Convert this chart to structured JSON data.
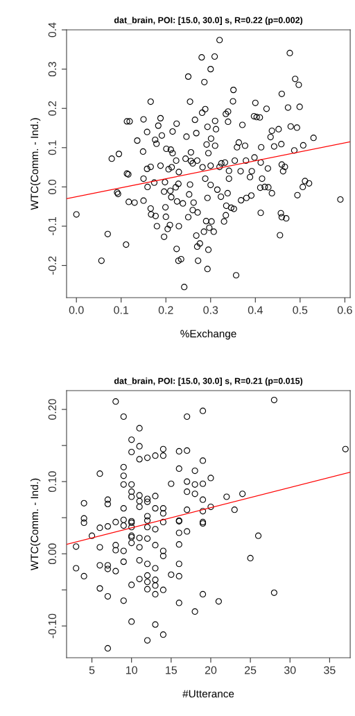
{
  "chart_data": [
    {
      "type": "scatter",
      "title": "dat_brain, POI: [15.0, 30.0] s, R=0.22 (p=0.002)",
      "xlabel": "%Exchange",
      "ylabel": "WTC(Comm. - Ind.)",
      "xlim": [
        -0.022,
        0.612
      ],
      "ylim": [
        -0.282,
        0.4
      ],
      "xticks": [
        {
          "value": 0,
          "label": "0.0"
        },
        {
          "value": 0.1,
          "label": "0.1"
        },
        {
          "value": 0.2,
          "label": "0.2"
        },
        {
          "value": 0.3,
          "label": "0.3"
        },
        {
          "value": 0.4,
          "label": "0.4"
        },
        {
          "value": 0.5,
          "label": "0.5"
        },
        {
          "value": 0.6,
          "label": "0.6"
        }
      ],
      "yticks": [
        {
          "value": -0.2,
          "label": "-0.2"
        },
        {
          "value": -0.1,
          "label": "-0.1"
        },
        {
          "value": 0,
          "label": "0.0"
        },
        {
          "value": 0.1,
          "label": "0.1"
        },
        {
          "value": 0.2,
          "label": "0.2"
        },
        {
          "value": 0.3,
          "label": "0.3"
        },
        {
          "value": 0.4,
          "label": "0.4"
        }
      ],
      "grid": false,
      "series": [
        {
          "color": "#000000",
          "marker": "circle",
          "x": [
            0.32,
            0.28,
            0.309,
            0.3,
            0.286,
            0.25,
            0.477,
            0.489,
            0.497,
            0.351,
            0.459,
            0.166,
            0.254,
            0.35,
            0.4,
            0.473,
            0.499,
            0.425,
            0.288,
            0.281,
            0.339,
            0.334,
            0.119,
            0.113,
            0.15,
            0.188,
            0.265,
            0.397,
            0.403,
            0.41,
            0.31,
            0.339,
            0.293,
            0.312,
            0.371,
            0.224,
            0.183,
            0.479,
            0.493,
            0.53,
            0.437,
            0.452,
            0.434,
            0.158,
            0.215,
            0.268,
            0.246,
            0.191,
            0.176,
            0.179,
            0.136,
            0.301,
            0.291,
            0.31,
            0.363,
            0.377,
            0.359,
            0.458,
            0.442,
            0.507,
            0.413,
            0.487,
            0.149,
            0.201,
            0.211,
            0.215,
            0.256,
            0.295,
            0.079,
            0.095,
            0.223,
            0.244,
            0.256,
            0.26,
            0.27,
            0.324,
            0.332,
            0.354,
            0.379,
            0.398,
            0.412,
            0.158,
            0.166,
            0.188,
            0.206,
            0.213,
            0.229,
            0.282,
            0.3,
            0.32,
            0.341,
            0.367,
            0.392,
            0.428,
            0.459,
            0.466,
            0.113,
            0.116,
            0.15,
            0.174,
            0.159,
            0.091,
            0.093,
            0.117,
            0.13,
            0.15,
            0.0,
            0.07,
            0.111,
            0.056,
            0.166,
            0.167,
            0.177,
            0.18,
            0.199,
            0.2,
            0.209,
            0.204,
            0.196,
            0.198,
            0.196,
            0.21,
            0.212,
            0.222,
            0.228,
            0.225,
            0.238,
            0.229,
            0.224,
            0.228,
            0.234,
            0.241,
            0.254,
            0.252,
            0.25,
            0.262,
            0.26,
            0.271,
            0.268,
            0.276,
            0.27,
            0.272,
            0.288,
            0.293,
            0.29,
            0.302,
            0.297,
            0.307,
            0.285,
            0.295,
            0.293,
            0.3,
            0.315,
            0.323,
            0.338,
            0.335,
            0.346,
            0.352,
            0.334,
            0.33,
            0.341,
            0.357,
            0.368,
            0.38,
            0.391,
            0.388,
            0.412,
            0.411,
            0.421,
            0.429,
            0.437,
            0.415,
            0.455,
            0.457,
            0.459,
            0.469,
            0.494,
            0.506,
            0.511,
            0.52,
            0.59,
            0.462
          ],
          "values": [
            0.374,
            0.33,
            0.332,
            0.3,
            0.267,
            0.281,
            0.341,
            0.275,
            0.26,
            0.247,
            0.237,
            0.217,
            0.217,
            0.218,
            0.214,
            0.202,
            0.204,
            0.199,
            0.198,
            0.189,
            0.192,
            0.186,
            0.167,
            0.167,
            0.172,
            0.175,
            0.171,
            0.18,
            0.178,
            0.177,
            0.168,
            0.166,
            0.153,
            0.147,
            0.158,
            0.161,
            0.156,
            0.154,
            0.151,
            0.125,
            0.143,
            0.147,
            0.127,
            0.14,
            0.141,
            0.137,
            0.128,
            0.131,
            0.12,
            0.11,
            0.118,
            0.123,
            0.108,
            0.105,
            0.113,
            0.105,
            0.101,
            0.109,
            0.103,
            0.106,
            0.101,
            0.093,
            0.09,
            0.097,
            0.095,
            0.086,
            0.088,
            0.086,
            0.072,
            0.084,
            0.067,
            0.072,
            0.066,
            0.06,
            0.067,
            0.06,
            0.062,
            0.067,
            0.067,
            0.075,
            0.062,
            0.046,
            0.051,
            0.054,
            0.045,
            0.05,
            0.038,
            0.05,
            0.054,
            0.051,
            0.041,
            0.04,
            0.04,
            0.047,
            0.057,
            0.051,
            0.034,
            0.032,
            0.021,
            0.011,
            0.0,
            -0.014,
            -0.018,
            -0.038,
            -0.04,
            -0.035,
            -0.07,
            -0.12,
            -0.147,
            -0.188,
            -0.055,
            -0.07,
            -0.074,
            -0.1,
            -0.052,
            -0.076,
            -0.097,
            -0.107,
            -0.127,
            0.012,
            -0.012,
            -0.01,
            -0.026,
            -0.001,
            0.008,
            -0.037,
            -0.042,
            -0.1,
            -0.158,
            -0.188,
            -0.184,
            -0.255,
            0.006,
            -0.019,
            -0.077,
            -0.04,
            -0.059,
            -0.065,
            -0.124,
            -0.144,
            -0.152,
            -0.188,
            0.021,
            -0.028,
            -0.087,
            -0.088,
            -0.104,
            -0.114,
            -0.114,
            -0.16,
            -0.209,
            0.005,
            -0.007,
            -0.025,
            -0.016,
            -0.048,
            -0.053,
            -0.056,
            -0.072,
            -0.088,
            0.021,
            -0.225,
            -0.034,
            -0.028,
            -0.022,
            0.025,
            -0.066,
            -0.002,
            0.0,
            -0.001,
            -0.016,
            0.021,
            -0.123,
            -0.067,
            -0.077,
            -0.08,
            -0.021,
            0.0,
            0.015,
            0.009,
            -0.032,
            0.04
          ]
        },
        {
          "type": "line",
          "color": "#ff0000",
          "x": [
            -0.022,
            0.612
          ],
          "values": [
            -0.03,
            0.115
          ]
        }
      ]
    },
    {
      "type": "scatter",
      "title": "dat_brain, POI: [15.0, 30.0] s, R=0.21 (p=0.015)",
      "xlabel": "#Utterance",
      "ylabel": "WTC(Comm. - Ind.)",
      "xlim": [
        1.8,
        37.6
      ],
      "ylim": [
        -0.144,
        0.226
      ],
      "xticks": [
        5,
        10,
        15,
        20,
        25,
        30,
        35
      ],
      "yticks": [
        {
          "value": -0.1,
          "label": "-0.10"
        },
        {
          "value": -0.05,
          "label": null
        },
        {
          "value": 0,
          "label": "0.00"
        },
        {
          "value": 0.05,
          "label": null
        },
        {
          "value": 0.1,
          "label": "0.10"
        },
        {
          "value": 0.15,
          "label": null
        },
        {
          "value": 0.2,
          "label": "0.20"
        }
      ],
      "grid": false,
      "series": [
        {
          "color": "#000000",
          "marker": "circle",
          "x": [
            8,
            9,
            11,
            10,
            11,
            10,
            11,
            12,
            13,
            14,
            14,
            16,
            17,
            17,
            19,
            19,
            28,
            37,
            6,
            9,
            9,
            9,
            10,
            10,
            10,
            11,
            12,
            13,
            11,
            12,
            15,
            16,
            17,
            18,
            18,
            19,
            20,
            17,
            18,
            19,
            22,
            24,
            4,
            7,
            7,
            9,
            11,
            13,
            14,
            12,
            12,
            14,
            17,
            19,
            20,
            23,
            4,
            4,
            16,
            19,
            9,
            10,
            6,
            7,
            8,
            9,
            10,
            10,
            12,
            13,
            14,
            16,
            16,
            17,
            19,
            5,
            10,
            10,
            11,
            12,
            26,
            3,
            6,
            8,
            8,
            9,
            10,
            11,
            13,
            14,
            14,
            16,
            25,
            3,
            4,
            6,
            7,
            7,
            8,
            9,
            11,
            12,
            13,
            16,
            15,
            16,
            11,
            12,
            12,
            13,
            13,
            12,
            14,
            13,
            10,
            6,
            7,
            9,
            16,
            19,
            21,
            18,
            28,
            10,
            13,
            14,
            12,
            7
          ],
          "values": [
            0.211,
            0.19,
            0.174,
            0.158,
            0.149,
            0.141,
            0.131,
            0.133,
            0.136,
            0.136,
            0.145,
            0.142,
            0.143,
            0.19,
            0.198,
            0.129,
            0.213,
            0.145,
            0.111,
            0.12,
            0.108,
            0.096,
            0.096,
            0.086,
            0.079,
            0.081,
            0.076,
            0.08,
            0.073,
            0.072,
            0.097,
            0.118,
            0.1,
            0.115,
            0.096,
            0.097,
            0.105,
            0.086,
            0.083,
            0.075,
            0.079,
            0.083,
            0.07,
            0.075,
            0.069,
            0.063,
            0.065,
            0.063,
            0.063,
            0.052,
            0.046,
            0.056,
            0.061,
            0.059,
            0.065,
            0.061,
            0.049,
            0.043,
            0.045,
            0.042,
            0.047,
            0.043,
            0.036,
            0.038,
            0.044,
            0.039,
            0.045,
            0.037,
            0.037,
            0.034,
            0.044,
            0.046,
            0.029,
            0.031,
            0.044,
            0.025,
            0.025,
            0.023,
            0.022,
            0.021,
            0.025,
            0.01,
            0.009,
            0.012,
            0.005,
            0.004,
            0.015,
            0.009,
            0.012,
            0.004,
            -0.003,
            0.013,
            -0.006,
            -0.02,
            -0.031,
            -0.016,
            -0.016,
            -0.021,
            -0.024,
            -0.011,
            -0.009,
            -0.014,
            -0.02,
            -0.014,
            -0.029,
            -0.031,
            -0.035,
            -0.03,
            -0.039,
            -0.036,
            -0.044,
            -0.049,
            -0.05,
            -0.056,
            -0.043,
            -0.048,
            -0.059,
            -0.065,
            -0.068,
            -0.056,
            -0.066,
            -0.08,
            -0.054,
            -0.094,
            -0.098,
            -0.112,
            -0.12,
            -0.131
          ]
        },
        {
          "type": "line",
          "color": "#ff0000",
          "x": [
            1.8,
            37.6
          ],
          "values": [
            0.013,
            0.113
          ]
        }
      ]
    }
  ]
}
